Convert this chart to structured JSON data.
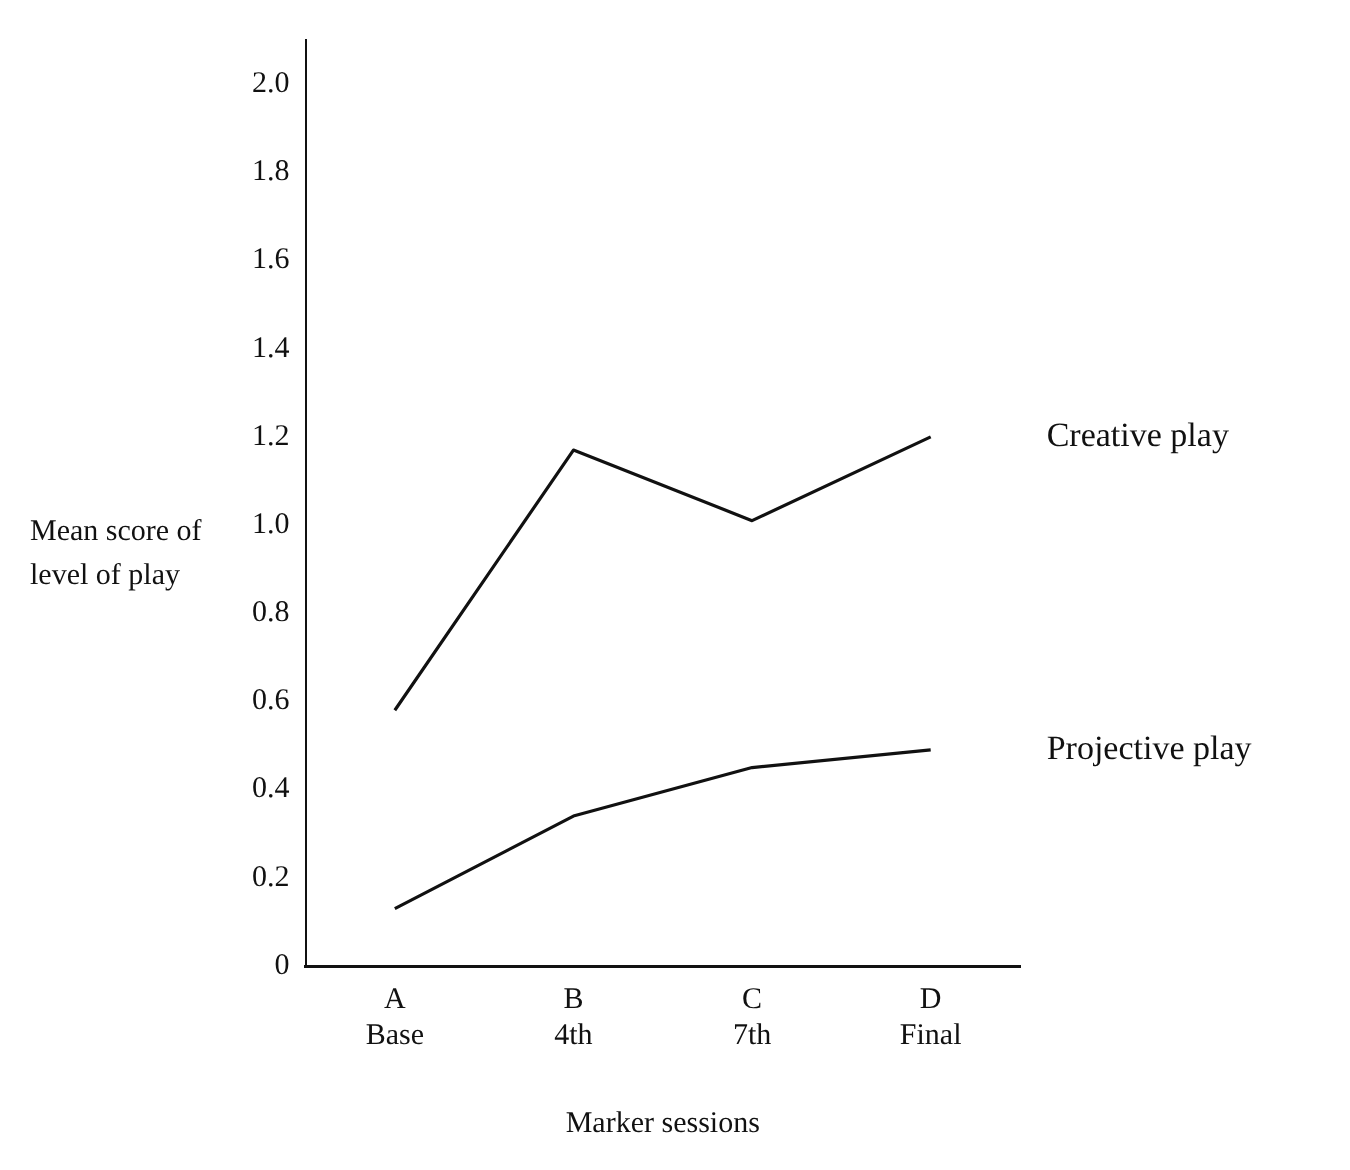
{
  "chart_data": {
    "type": "line",
    "xlabel": "Marker sessions",
    "ylabel": "Mean score of level of play",
    "categories": [
      "A\nBase",
      "B\n4th",
      "C\n7th",
      "D\nFinal"
    ],
    "series": [
      {
        "name": "Creative play",
        "color": "#111111",
        "values": [
          0.58,
          1.17,
          1.01,
          1.2
        ]
      },
      {
        "name": "Projective play",
        "color": "#111111",
        "values": [
          0.13,
          0.34,
          0.45,
          0.49
        ]
      }
    ],
    "ylim": [
      0,
      2.1
    ],
    "yticks": [
      0,
      0.2,
      0.4,
      0.6,
      0.8,
      {
        "value": 1,
        "label": "1.0"
      },
      1.2,
      1.4,
      1.6,
      1.8,
      {
        "value": 2,
        "label": "2.0"
      }
    ],
    "grid": false,
    "legend": false,
    "marker": "none",
    "line_style": "solid"
  }
}
